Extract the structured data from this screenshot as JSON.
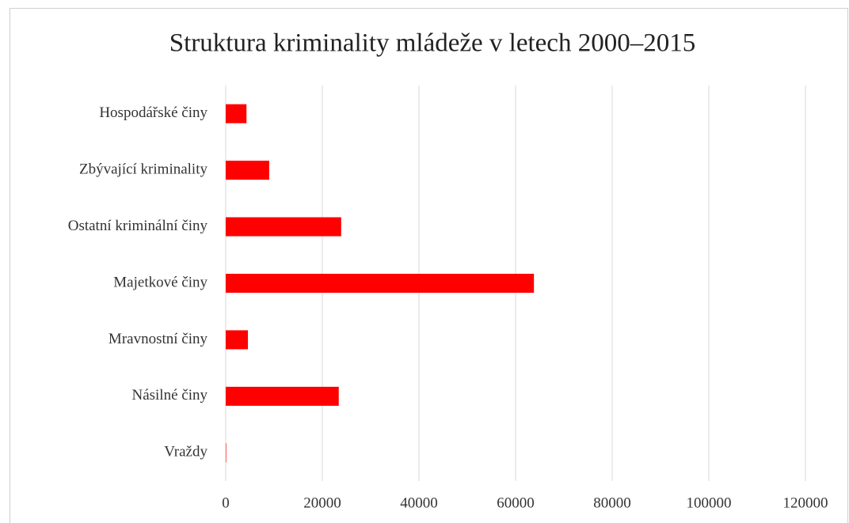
{
  "chart_data": {
    "type": "barh",
    "title": "Struktura kriminality mládeže v letech 2000–2015",
    "categories": [
      "Vraždy",
      "Násilné činy",
      "Mravnostní činy",
      "Majetkové činy",
      "Ostatní kriminální činy",
      "Zbývající kriminality",
      "Hospodářské činy"
    ],
    "values": [
      100,
      23400,
      4600,
      63800,
      23900,
      9000,
      4300
    ],
    "color": "#ff0000",
    "xlim": [
      0,
      120000
    ],
    "xticks": [
      0,
      20000,
      40000,
      60000,
      80000,
      100000,
      120000
    ],
    "grid": true
  }
}
